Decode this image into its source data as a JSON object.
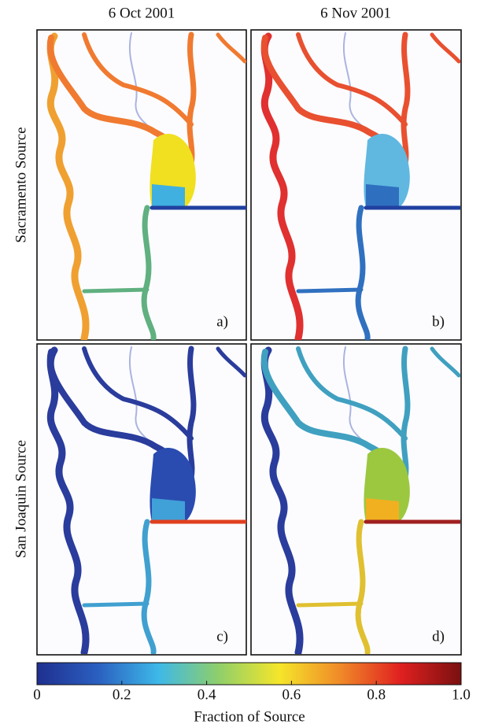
{
  "columns": [
    "6 Oct 2001",
    "6 Nov 2001"
  ],
  "rows": [
    "Sacramento Source",
    "San Joaquin Source"
  ],
  "panels": [
    "a)",
    "b)",
    "c)",
    "d)"
  ],
  "colorbar": {
    "label": "Fraction of Source",
    "lim": [
      0,
      1
    ],
    "ticks": [
      0,
      0.2,
      0.4,
      0.6,
      0.8,
      {
        "value": 1,
        "label": "1.0"
      }
    ],
    "colors": [
      "#1f2f8f",
      "#2a5fc0",
      "#3db8e8",
      "#8fcf6a",
      "#f5e62a",
      "#f08a28",
      "#e02020",
      "#7a1010"
    ]
  }
}
